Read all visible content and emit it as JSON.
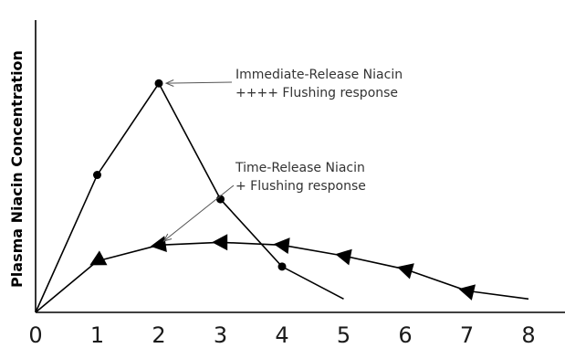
{
  "chart_data": {
    "type": "line",
    "title": "",
    "xlabel": "",
    "ylabel": "Plasma Niacin Concentration",
    "x_ticks": [
      0,
      1,
      2,
      3,
      4,
      5,
      6,
      7,
      8
    ],
    "xlim": [
      0,
      9
    ],
    "ylim": [
      0,
      10
    ],
    "grid": false,
    "series": [
      {
        "marker": "circle",
        "x": [
          0,
          1,
          2,
          3,
          4,
          5
        ],
        "y": [
          0,
          5.1,
          8.5,
          4.2,
          1.7,
          0.5
        ],
        "marked": [
          false,
          true,
          true,
          true,
          true,
          false
        ]
      },
      {
        "marker": "triangle-left",
        "x": [
          0,
          1,
          2,
          3,
          4,
          5,
          6,
          7,
          8
        ],
        "y": [
          0,
          1.9,
          2.5,
          2.6,
          2.5,
          2.1,
          1.6,
          0.8,
          0.5
        ],
        "marked": [
          false,
          true,
          true,
          true,
          true,
          true,
          true,
          true,
          false
        ]
      }
    ],
    "annotations": [
      {
        "lines": [
          "Immediate-Release Niacin",
          "++++ Flushing response"
        ],
        "target": {
          "series": 0,
          "x": 2
        }
      },
      {
        "lines": [
          "Time-Release Niacin",
          "+ Flushing response"
        ],
        "target": {
          "series": 1,
          "x": 2
        }
      }
    ]
  }
}
